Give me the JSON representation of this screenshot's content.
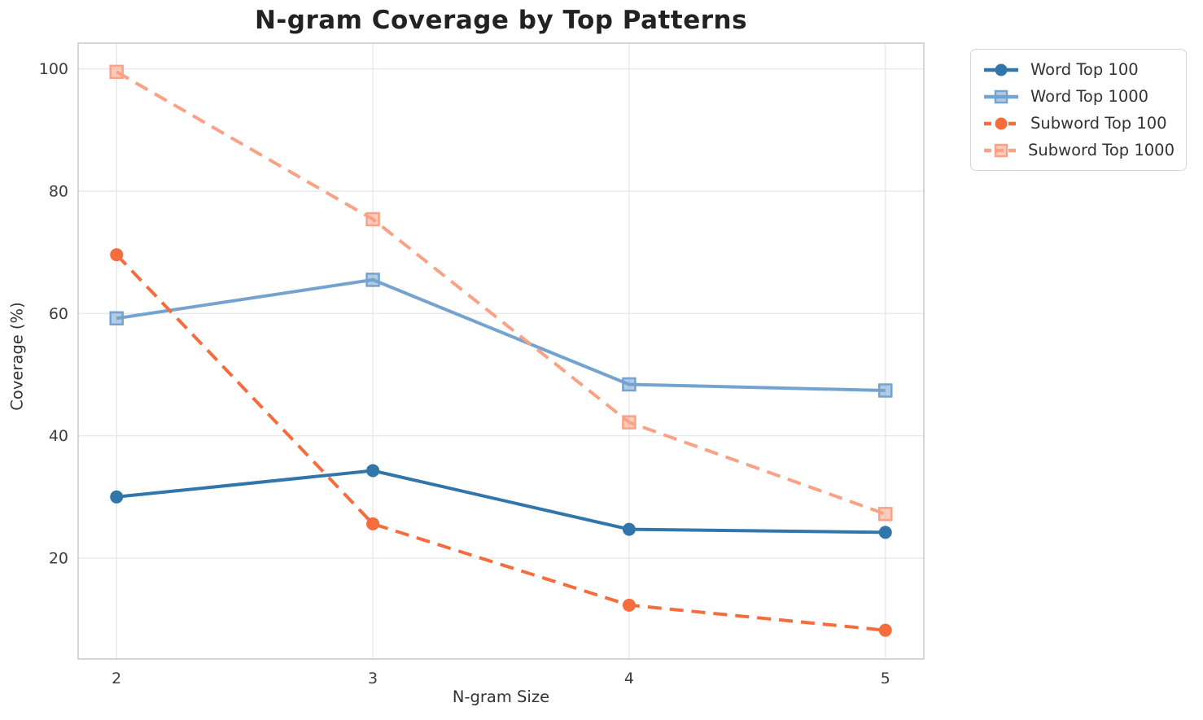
{
  "figure": {
    "title": "N-gram Coverage by Top Patterns",
    "xlabel": "N-gram Size",
    "ylabel": "Coverage (%)"
  },
  "chart_data": {
    "type": "line",
    "title": "N-gram Coverage by Top Patterns",
    "xlabel": "N-gram Size",
    "ylabel": "Coverage (%)",
    "x": [
      2,
      3,
      4,
      5
    ],
    "x_tick_labels": [
      "2",
      "3",
      "4",
      "5"
    ],
    "y_ticks": [
      20,
      40,
      60,
      80,
      100
    ],
    "xlim": [
      1.85,
      5.15
    ],
    "ylim": [
      3.5,
      104.2
    ],
    "grid": true,
    "legend_position": "outside-upper-right",
    "series": [
      {
        "name": "Word Top 100",
        "values": [
          30.0,
          34.3,
          24.7,
          24.2
        ],
        "color": "#3176ab",
        "line_style": "solid",
        "marker": "circle"
      },
      {
        "name": "Word Top 1000",
        "values": [
          59.2,
          65.5,
          48.4,
          47.4
        ],
        "color": "#74a3d0",
        "line_style": "solid",
        "marker": "square"
      },
      {
        "name": "Subword Top 100",
        "values": [
          69.6,
          25.6,
          12.3,
          8.2
        ],
        "color": "#f56c3d",
        "line_style": "dashed",
        "marker": "circle"
      },
      {
        "name": "Subword Top 1000",
        "values": [
          99.5,
          75.4,
          42.2,
          27.2
        ],
        "color": "#fba286",
        "line_style": "dashed",
        "marker": "square"
      }
    ],
    "style": {
      "grid_color": "#e7e7e7",
      "spine_color": "#cccccc",
      "tick_label_color": "#3d3d3d",
      "title_color": "#222222",
      "axis_label_color": "#333333",
      "background": "#ffffff"
    }
  }
}
